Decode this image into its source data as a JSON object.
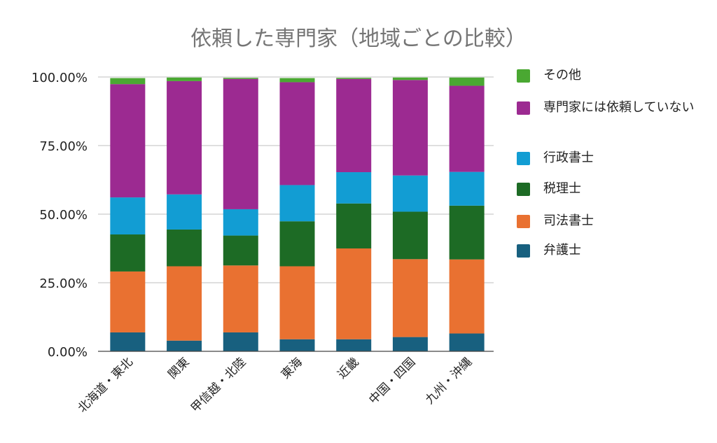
{
  "chart_data": {
    "type": "bar",
    "stacked": true,
    "title": "依頼した専門家（地域ごとの比較）",
    "xlabel": "",
    "ylabel": "",
    "ylim": [
      0,
      100
    ],
    "yticks": [
      "0.00%",
      "25.00%",
      "50.00%",
      "75.00%",
      "100.00%"
    ],
    "ytick_values": [
      0,
      25,
      50,
      75,
      100
    ],
    "grid": true,
    "legend_position": "right",
    "categories": [
      "北海道・東北",
      "関東",
      "甲信越・北陸",
      "東海",
      "近畿",
      "中国・四国",
      "九州・沖縄"
    ],
    "series": [
      {
        "name": "弁護士",
        "color": "#18607f",
        "values": [
          6.9,
          3.9,
          6.9,
          4.4,
          4.4,
          5.2,
          6.5
        ]
      },
      {
        "name": "司法書士",
        "color": "#e97131",
        "values": [
          22.2,
          27.1,
          24.4,
          26.6,
          33.1,
          28.4,
          27.0
        ]
      },
      {
        "name": "税理士",
        "color": "#1d6b25",
        "values": [
          13.5,
          13.4,
          10.9,
          16.4,
          16.4,
          17.3,
          19.6
        ]
      },
      {
        "name": "行政書士",
        "color": "#129dd3",
        "values": [
          13.5,
          12.8,
          9.6,
          13.2,
          11.4,
          13.2,
          12.3
        ]
      },
      {
        "name": "専門家には依頼していない",
        "color": "#9c2a91",
        "values": [
          41.3,
          41.3,
          47.5,
          37.5,
          34.0,
          34.8,
          31.4
        ]
      },
      {
        "name": "その他",
        "color": "#4aa832",
        "values": [
          2.2,
          1.3,
          0.4,
          1.5,
          0.4,
          0.9,
          3.0
        ]
      }
    ],
    "legend_order": [
      5,
      4,
      3,
      2,
      1,
      0
    ]
  }
}
